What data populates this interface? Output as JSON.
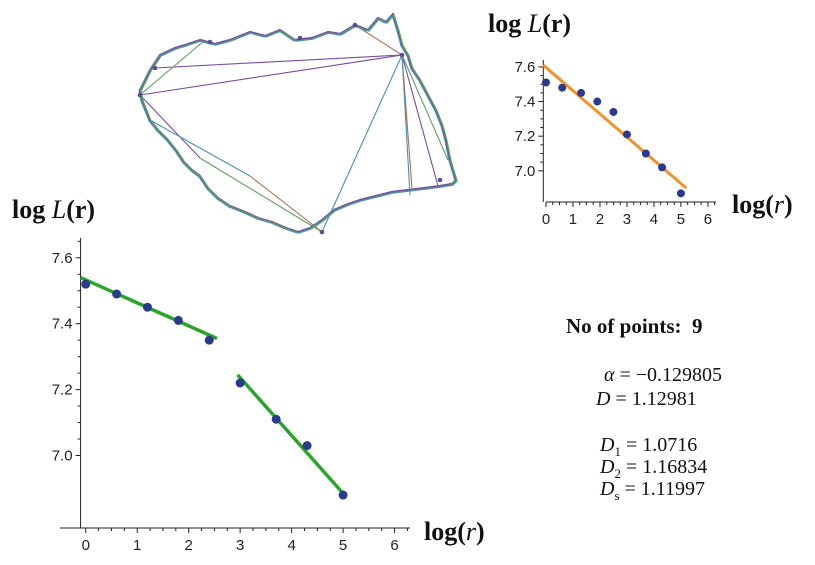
{
  "chart_data": [
    {
      "type": "line",
      "role": "polygon-approximation",
      "x": [
        150,
        160,
        175,
        185,
        200,
        215,
        230,
        250,
        265,
        280,
        295,
        312,
        328,
        340,
        355,
        368,
        378,
        386,
        393,
        398,
        402,
        408,
        412,
        420,
        428,
        436,
        442,
        446,
        450,
        456,
        452,
        440,
        425,
        408,
        392,
        376,
        360,
        348,
        334,
        322,
        310,
        298,
        286,
        272,
        258,
        245,
        230,
        218,
        208,
        200,
        192,
        184,
        176,
        168,
        158,
        150,
        142,
        140,
        145,
        150
      ],
      "y": [
        70,
        55,
        48,
        45,
        40,
        44,
        40,
        32,
        36,
        30,
        40,
        38,
        32,
        34,
        25,
        30,
        18,
        22,
        14,
        30,
        45,
        55,
        68,
        80,
        95,
        110,
        125,
        140,
        160,
        180,
        184,
        186,
        188,
        190,
        192,
        196,
        200,
        204,
        210,
        220,
        228,
        232,
        228,
        222,
        218,
        212,
        206,
        198,
        188,
        176,
        170,
        162,
        150,
        140,
        130,
        120,
        100,
        90,
        80,
        70
      ],
      "fans": [
        [
          155,
          68,
          402,
          55
        ],
        [
          140,
          95,
          205,
          40
        ],
        [
          402,
          55,
          322,
          232
        ],
        [
          402,
          55,
          412,
          188
        ],
        [
          402,
          55,
          438,
          186
        ],
        [
          402,
          55,
          448,
          160
        ],
        [
          402,
          55,
          410,
          195
        ],
        [
          355,
          25,
          402,
          55
        ],
        [
          140,
          95,
          200,
          158
        ],
        [
          200,
          158,
          322,
          232
        ],
        [
          150,
          120,
          250,
          176
        ],
        [
          250,
          176,
          322,
          232
        ],
        [
          140,
          95,
          402,
          55
        ]
      ]
    },
    {
      "type": "scatter",
      "role": "inset",
      "xlabel": "log(r)",
      "ylabel": "log L(r)",
      "xticks": [
        "0",
        "1",
        "2",
        "3",
        "4",
        "5",
        "6"
      ],
      "yticks": [
        "7.0",
        "7.2",
        "7.4",
        "7.6"
      ],
      "xlim": [
        0,
        6.3
      ],
      "ylim": [
        6.82,
        7.64
      ],
      "points": [
        [
          0,
          7.51
        ],
        [
          0.6,
          7.48
        ],
        [
          1.3,
          7.45
        ],
        [
          1.9,
          7.4
        ],
        [
          2.5,
          7.34
        ],
        [
          3.0,
          7.21
        ],
        [
          3.7,
          7.1
        ],
        [
          4.3,
          7.02
        ],
        [
          5.0,
          6.87
        ]
      ],
      "fit": [
        [
          -0.1,
          7.61
        ],
        [
          5.2,
          6.9
        ]
      ],
      "fit_color": "#f0922a",
      "point_color": "#2b3a8c"
    },
    {
      "type": "scatter",
      "role": "main",
      "xlabel": "log(r)",
      "ylabel": "log L(r)",
      "xticks": [
        "0",
        "1",
        "2",
        "3",
        "4",
        "5",
        "6"
      ],
      "yticks": [
        "7.0",
        "7.2",
        "7.4",
        "7.6"
      ],
      "xlim": [
        -0.5,
        6.3
      ],
      "ylim": [
        6.78,
        7.66
      ],
      "points": [
        [
          0,
          7.52
        ],
        [
          0.6,
          7.49
        ],
        [
          1.2,
          7.45
        ],
        [
          1.8,
          7.41
        ],
        [
          2.4,
          7.35
        ],
        [
          3.0,
          7.22
        ],
        [
          3.7,
          7.11
        ],
        [
          4.3,
          7.03
        ],
        [
          5.0,
          6.88
        ]
      ],
      "fit1": [
        [
          -0.1,
          7.54
        ],
        [
          2.55,
          7.355
        ]
      ],
      "fit2": [
        [
          2.95,
          7.245
        ],
        [
          5.0,
          6.885
        ]
      ],
      "fit_color": "#2aa52a",
      "point_color": "#2b3a8c"
    }
  ],
  "stats": {
    "n_label": "No of points:",
    "n_value": "9",
    "alpha_sym": "α",
    "alpha_eq": "= −0.129805",
    "D_sym": "D",
    "D_eq": "=  1.12981",
    "D1_sym": "D",
    "D1_sub": "1",
    "D1_eq": "= 1.0716",
    "D2_sym": "D",
    "D2_sub": "2",
    "D2_eq": "= 1.16834",
    "Ds_sym": "D",
    "Ds_sub": "s",
    "Ds_eq": "= 1.11997"
  },
  "labels": {
    "ylabel_prefix": "log",
    "ylabel_fn": "L",
    "ylabel_arg": "(r)",
    "xlabel_prefix": "log(",
    "xlabel_var": "r",
    "xlabel_suffix": ")"
  }
}
